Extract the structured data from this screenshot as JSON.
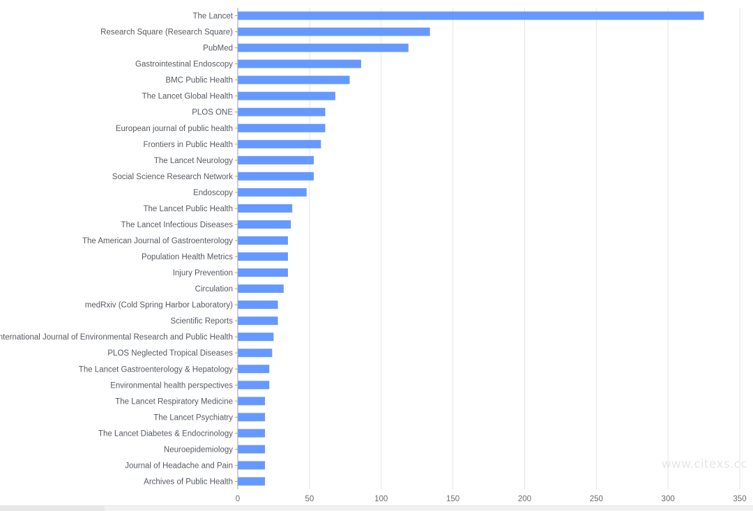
{
  "chart_data": {
    "type": "bar",
    "orientation": "horizontal",
    "categories": [
      "The Lancet",
      "Research Square (Research Square)",
      "PubMed",
      "Gastrointestinal Endoscopy",
      "BMC Public Health",
      "The Lancet Global Health",
      "PLOS ONE",
      "European journal of public health",
      "Frontiers in Public Health",
      "The Lancet Neurology",
      "Social Science Research Network",
      "Endoscopy",
      "The Lancet Public Health",
      "The Lancet Infectious Diseases",
      "The American Journal of Gastroenterology",
      "Population Health Metrics",
      "Injury Prevention",
      "Circulation",
      "medRxiv (Cold Spring Harbor Laboratory)",
      "Scientific Reports",
      "International Journal of Environmental Research and Public Health",
      "PLOS Neglected Tropical Diseases",
      "The Lancet Gastroenterology & Hepatology",
      "Environmental health perspectives",
      "The Lancet Respiratory Medicine",
      "The Lancet Psychiatry",
      "The Lancet Diabetes & Endocrinology",
      "Neuroepidemiology",
      "Journal of Headache and Pain",
      "Archives of Public Health"
    ],
    "values": [
      325,
      134,
      119,
      86,
      78,
      68,
      61,
      61,
      58,
      53,
      53,
      48,
      38,
      37,
      35,
      35,
      35,
      32,
      28,
      28,
      25,
      24,
      22,
      22,
      19,
      19,
      19,
      19,
      19,
      19
    ],
    "xlim": [
      0,
      350
    ],
    "xticks": [
      0,
      50,
      100,
      150,
      200,
      250,
      300,
      350
    ],
    "bar_color": "#6699ff",
    "grid": true
  },
  "watermark": "www.citexs.cc"
}
